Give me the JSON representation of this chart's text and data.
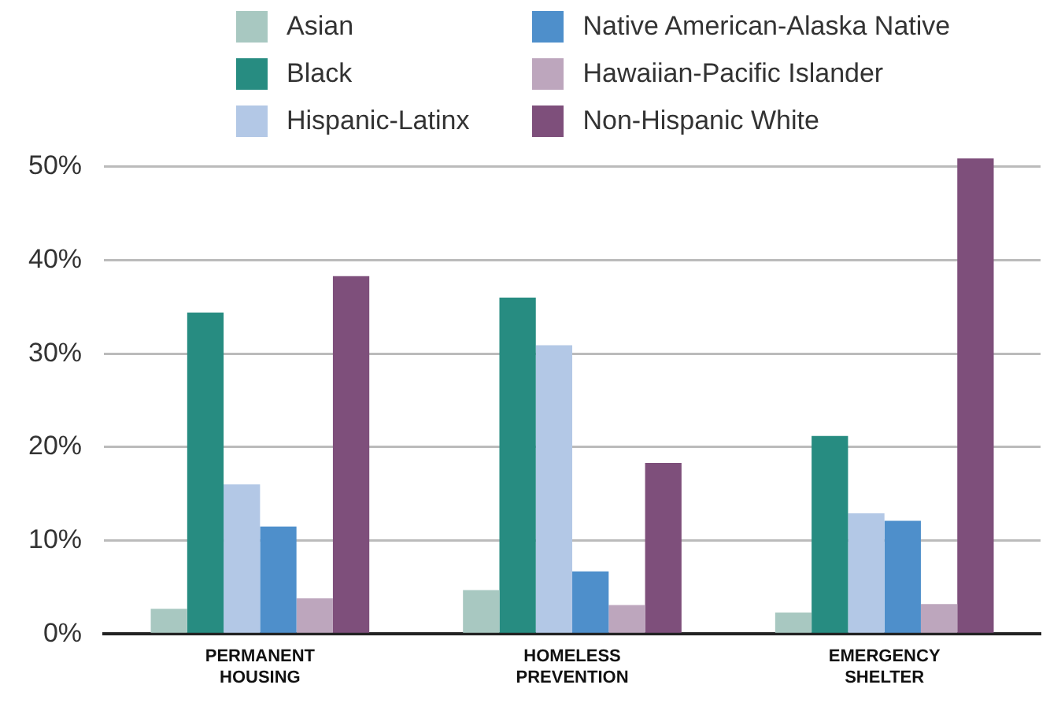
{
  "chart_data": {
    "type": "bar",
    "categories": [
      "PERMANENT HOUSING",
      "HOMELESS PREVENTION",
      "EMERGENCY SHELTER"
    ],
    "series": [
      {
        "name": "Asian",
        "color": "#a8c8c1",
        "values": [
          2.7,
          4.7,
          2.3
        ]
      },
      {
        "name": "Black",
        "color": "#278c81",
        "values": [
          34.4,
          36.0,
          21.2
        ]
      },
      {
        "name": "Hispanic-Latinx",
        "color": "#b3c8e6",
        "values": [
          16.0,
          30.9,
          12.9
        ]
      },
      {
        "name": "Native American-Alaska Native",
        "color": "#4e8fcb",
        "values": [
          11.5,
          6.7,
          12.1
        ]
      },
      {
        "name": "Hawaiian-Pacific Islander",
        "color": "#bda6bd",
        "values": [
          3.8,
          3.1,
          3.2
        ]
      },
      {
        "name": "Non-Hispanic White",
        "color": "#7e4f7b",
        "values": [
          38.3,
          18.3,
          50.9
        ]
      }
    ],
    "ylim": [
      0,
      51
    ],
    "yticks": [
      {
        "value": 0,
        "label": "0%"
      },
      {
        "value": 10,
        "label": "10%"
      },
      {
        "value": 20,
        "label": "20%"
      },
      {
        "value": 30,
        "label": "30%"
      },
      {
        "value": 40,
        "label": "40%"
      },
      {
        "value": 50,
        "label": "50%"
      }
    ],
    "grid": "y",
    "legend": "top"
  }
}
